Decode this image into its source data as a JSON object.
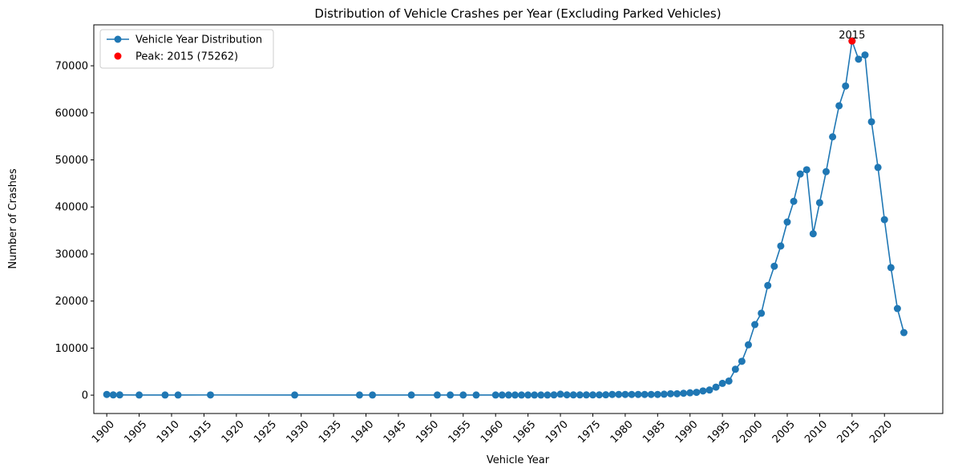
{
  "chart_data": {
    "type": "line",
    "title": "Distribution of Vehicle Crashes per Year (Excluding Parked Vehicles)",
    "x_label": "Vehicle Year",
    "y_label": "Number of Crashes",
    "xlim": [
      1898,
      2029
    ],
    "ylim": [
      -3900,
      78700
    ],
    "xticks": [
      1900,
      1905,
      1910,
      1915,
      1920,
      1925,
      1930,
      1935,
      1940,
      1945,
      1950,
      1955,
      1960,
      1965,
      1970,
      1975,
      1980,
      1985,
      1990,
      1995,
      2000,
      2005,
      2010,
      2015,
      2020
    ],
    "yticks": [
      0,
      10000,
      20000,
      30000,
      40000,
      50000,
      60000,
      70000
    ],
    "legend": "upper left",
    "series": [
      {
        "name": "Vehicle Year Distribution",
        "type": "line",
        "color": "#1f77b4",
        "x": [
          1900,
          1901,
          1902,
          1905,
          1909,
          1911,
          1916,
          1929,
          1939,
          1941,
          1947,
          1951,
          1953,
          1955,
          1957,
          1960,
          1961,
          1962,
          1963,
          1964,
          1965,
          1966,
          1967,
          1968,
          1969,
          1970,
          1971,
          1972,
          1973,
          1974,
          1975,
          1976,
          1977,
          1978,
          1979,
          1980,
          1981,
          1982,
          1983,
          1984,
          1985,
          1986,
          1987,
          1988,
          1989,
          1990,
          1991,
          1992,
          1993,
          1994,
          1995,
          1996,
          1997,
          1998,
          1999,
          2000,
          2001,
          2002,
          2003,
          2004,
          2005,
          2006,
          2007,
          2008,
          2009,
          2010,
          2011,
          2012,
          2013,
          2014,
          2015,
          2016,
          2017,
          2018,
          2019,
          2020,
          2021,
          2022,
          2023
        ],
        "values": [
          150,
          50,
          50,
          30,
          30,
          30,
          40,
          30,
          30,
          30,
          30,
          30,
          30,
          30,
          30,
          30,
          30,
          30,
          30,
          30,
          30,
          30,
          30,
          30,
          50,
          200,
          60,
          50,
          50,
          50,
          50,
          60,
          80,
          150,
          150,
          150,
          150,
          150,
          150,
          150,
          150,
          200,
          300,
          300,
          400,
          500,
          600,
          900,
          1100,
          1700,
          2500,
          3000,
          5500,
          7200,
          10700,
          15000,
          17400,
          23300,
          27400,
          31700,
          36800,
          41200,
          47000,
          47900,
          34300,
          40900,
          47500,
          54900,
          61500,
          65700,
          75262,
          71400,
          72300,
          58100,
          48400,
          37300,
          27100,
          18400,
          13300
        ]
      },
      {
        "name": "Peak: 2015 (75262)",
        "type": "scatter",
        "color": "#ff0000",
        "x": [
          2015
        ],
        "values": [
          75262
        ]
      }
    ],
    "annotations": [
      {
        "text": "2015",
        "x": 2015,
        "y": 75262
      }
    ]
  }
}
